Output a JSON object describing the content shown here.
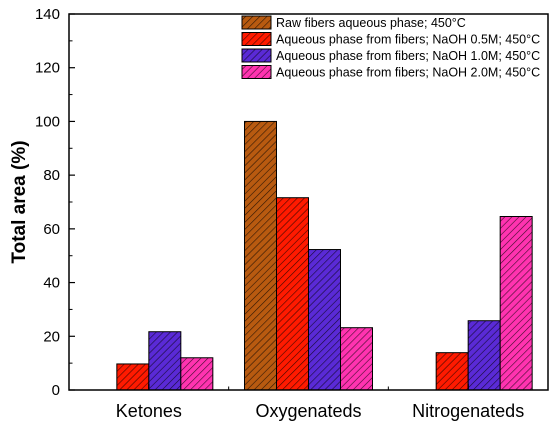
{
  "chart_data": {
    "type": "bar",
    "title": "",
    "xlabel": "",
    "ylabel": "Total area (%)",
    "ylim": [
      0,
      140
    ],
    "yticks": [
      0,
      20,
      40,
      60,
      80,
      100,
      120,
      140
    ],
    "categories": [
      "Ketones",
      "Oxygenateds",
      "Nitrogenateds"
    ],
    "legend_position": "top-right",
    "grid": false,
    "series": [
      {
        "name": "Raw fibers aqueous phase; 450°C",
        "values": [
          null,
          100,
          null
        ],
        "color": "#b85a10",
        "pattern": "hatch"
      },
      {
        "name": "Aqueous phase from fibers; NaOH 0.5M; 450°C",
        "values": [
          9.7,
          71.6,
          13.9
        ],
        "color": "#ff1a00",
        "pattern": "hatch"
      },
      {
        "name": "Aqueous phase from fibers; NaOH 1.0M; 450°C",
        "values": [
          21.7,
          52.3,
          25.8
        ],
        "color": "#5a2ad6",
        "pattern": "hatch"
      },
      {
        "name": "Aqueous phase from fibers; NaOH 2.0M; 450°C",
        "values": [
          12.0,
          23.2,
          64.6
        ],
        "color": "#ff33b0",
        "pattern": "hatch"
      }
    ]
  }
}
